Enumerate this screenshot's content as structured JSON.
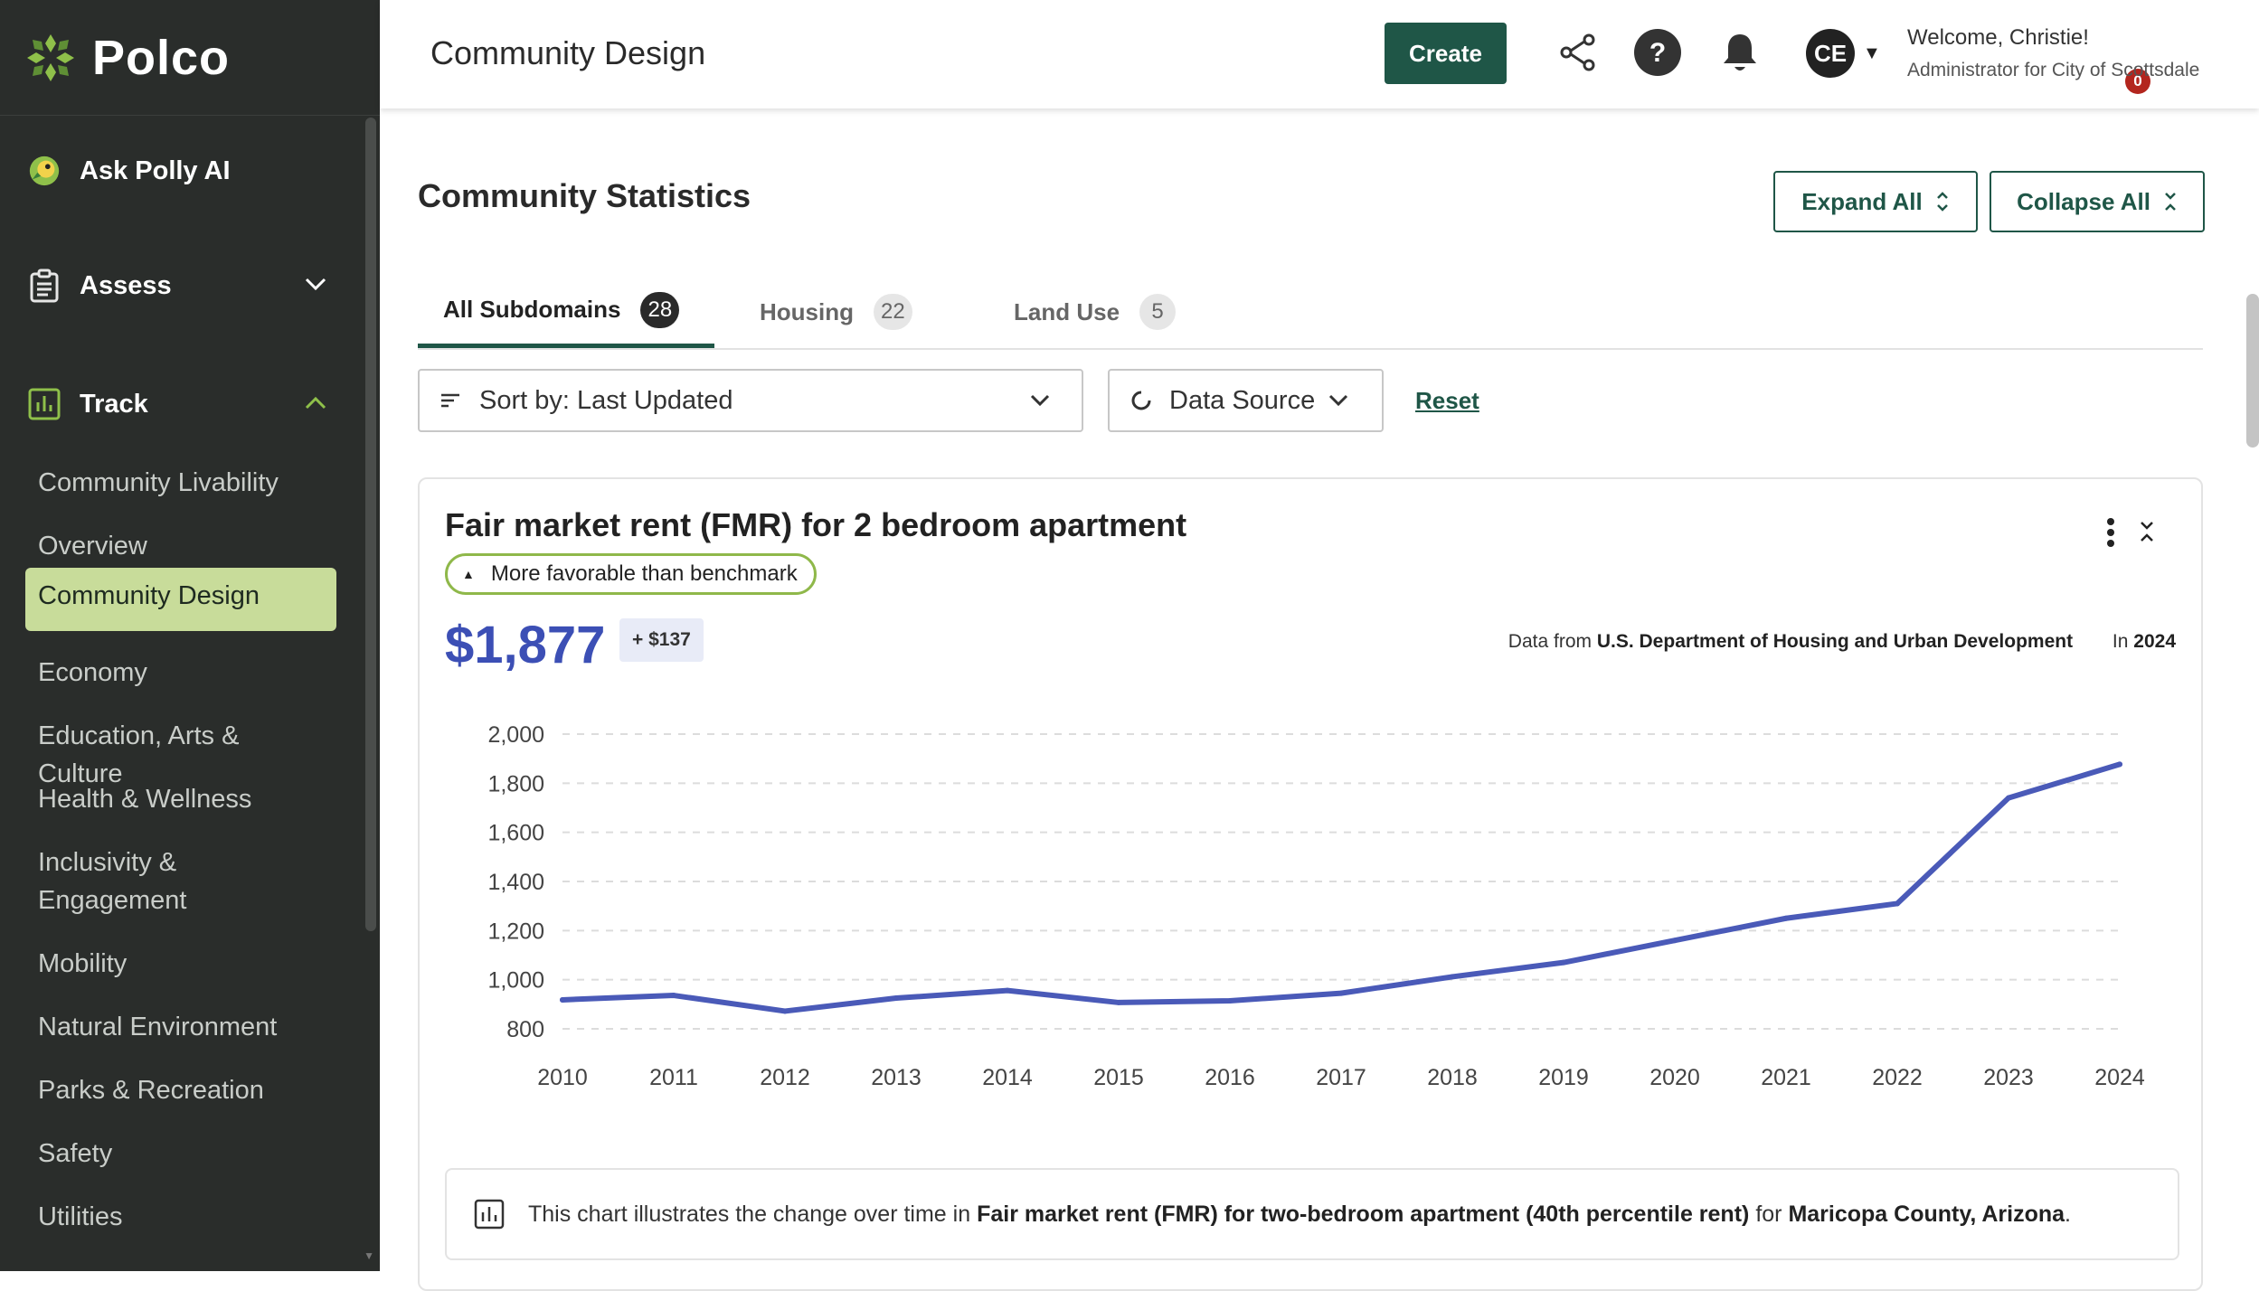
{
  "brand": {
    "name": "Polco",
    "accent": "#1f5647",
    "sidebar_bg": "#2a2d2b",
    "active_bg": "#c8dc9a"
  },
  "sidebar": {
    "ask": "Ask Polly AI",
    "assess": "Assess",
    "track": "Track",
    "items": [
      "Community Livability",
      "Overview",
      "Community Design",
      "Economy",
      "Education, Arts & Culture",
      "Health & Wellness",
      "Inclusivity & Engagement",
      "Mobility",
      "Natural Environment",
      "Parks & Recreation",
      "Safety",
      "Utilities"
    ],
    "active_item": "Community Design"
  },
  "header": {
    "title": "Community Design",
    "create": "Create",
    "avatar": "CE",
    "notifications": "0",
    "welcome": "Welcome, Christie!",
    "role": "Administrator for City of Scottsdale"
  },
  "main": {
    "section_title": "Community Statistics",
    "expand_all": "Expand All",
    "collapse_all": "Collapse All",
    "tabs": [
      {
        "label": "All Subdomains",
        "count": "28"
      },
      {
        "label": "Housing",
        "count": "22"
      },
      {
        "label": "Land Use",
        "count": "5"
      }
    ],
    "sort_label": "Sort by: Last Updated",
    "data_source": "Data Source",
    "reset": "Reset"
  },
  "card": {
    "title": "Fair market rent (FMR) for 2 bedroom apartment",
    "benchmark": "More favorable than benchmark",
    "value": "$1,877",
    "delta": "+ $137",
    "source_prefix": "Data from",
    "source": "U.S. Department of Housing and Urban Development",
    "year_prefix": "In",
    "year": "2024",
    "desc_1": "This chart illustrates the change over time in",
    "desc_metric": "Fair market rent (FMR) for two-bedroom apartment (40th percentile rent)",
    "desc_2": "for",
    "desc_place": "Maricopa County, Arizona",
    "desc_end": "."
  },
  "chart_data": {
    "type": "line",
    "x": [
      2010,
      2011,
      2012,
      2013,
      2014,
      2015,
      2016,
      2017,
      2018,
      2019,
      2020,
      2021,
      2022,
      2023,
      2024
    ],
    "series": [
      {
        "values": [
          918,
          936,
          872,
          925,
          956,
          907,
          914,
          945,
          1012,
          1070,
          1160,
          1250,
          1310,
          1740,
          1877
        ]
      }
    ],
    "y_ticks": [
      800,
      1000,
      1200,
      1400,
      1600,
      1800,
      2000
    ],
    "ylim": [
      800,
      2000
    ],
    "grid": true,
    "line_color": "#4a5ab8"
  }
}
